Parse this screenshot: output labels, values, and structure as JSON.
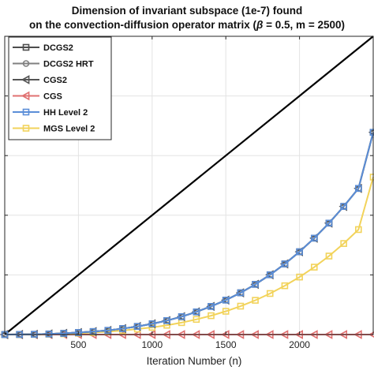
{
  "chart_data": {
    "type": "line",
    "title_line1": "Dimension of invariant subspace (1e-7) found",
    "title_line2_prefix": "on the convection-diffusion operator matrix (",
    "title_line2_beta": "β",
    "title_line2_suffix": " = 0.5, m = 2500)",
    "xlabel": "Iteration Number (n)",
    "ylabel": "",
    "xlim": [
      0,
      2500
    ],
    "ylim": [
      0,
      2500
    ],
    "x_ticks": [
      500,
      1000,
      1500,
      2000
    ],
    "y_ticks": [
      500,
      1000,
      1500,
      2000,
      2500
    ],
    "grid": true,
    "legend_position": "top-left",
    "reference_line": {
      "x": [
        0,
        2500
      ],
      "y": [
        0,
        2500
      ],
      "color": "#000000"
    },
    "series": [
      {
        "name": "DCGS2",
        "marker": "square",
        "color": "#4d4d4d",
        "x": [
          0,
          100,
          200,
          300,
          400,
          500,
          600,
          700,
          800,
          900,
          1000,
          1100,
          1200,
          1300,
          1400,
          1500,
          1600,
          1700,
          1800,
          1900,
          2000,
          2100,
          2200,
          2300,
          2400,
          2500
        ],
        "y": [
          0,
          1,
          2,
          5,
          10,
          17,
          25,
          35,
          50,
          68,
          90,
          117,
          150,
          190,
          236,
          289,
          350,
          421,
          501,
          592,
          694,
          808,
          934,
          1074,
          1225,
          1695
        ]
      },
      {
        "name": "DCGS2 HRT",
        "marker": "circle",
        "color": "#808080",
        "x": [
          0,
          100,
          200,
          300,
          400,
          500,
          600,
          700,
          800,
          900,
          1000,
          1100,
          1200,
          1300,
          1400,
          1500,
          1600,
          1700,
          1800,
          1900,
          2000,
          2100,
          2200,
          2300,
          2400,
          2500
        ],
        "y": [
          0,
          1,
          2,
          5,
          10,
          17,
          25,
          35,
          50,
          68,
          90,
          117,
          150,
          190,
          236,
          289,
          350,
          421,
          501,
          592,
          694,
          808,
          934,
          1074,
          1225,
          1695
        ]
      },
      {
        "name": "CGS2",
        "marker": "triangle-left",
        "color": "#555555",
        "x": [
          0,
          100,
          200,
          300,
          400,
          500,
          600,
          700,
          800,
          900,
          1000,
          1100,
          1200,
          1300,
          1400,
          1500,
          1600,
          1700,
          1800,
          1900,
          2000,
          2100,
          2200,
          2300,
          2400,
          2500
        ],
        "y": [
          0,
          1,
          2,
          5,
          10,
          17,
          25,
          35,
          50,
          68,
          90,
          117,
          150,
          190,
          236,
          289,
          350,
          421,
          501,
          592,
          694,
          808,
          934,
          1074,
          1225,
          1695
        ]
      },
      {
        "name": "CGS",
        "marker": "triangle-left",
        "color": "#e07070",
        "x": [
          0,
          100,
          200,
          300,
          400,
          500,
          600,
          700,
          800,
          900,
          1000,
          1100,
          1200,
          1300,
          1400,
          1500,
          1600,
          1700,
          1800,
          1900,
          2000,
          2100,
          2200,
          2300,
          2400,
          2500
        ],
        "y": [
          0,
          0,
          0,
          0,
          0,
          0,
          0,
          0,
          0,
          0,
          0,
          0,
          0,
          0,
          0,
          0,
          0,
          0,
          0,
          0,
          0,
          0,
          0,
          0,
          0,
          0
        ]
      },
      {
        "name": "HH Level 2",
        "marker": "square",
        "color": "#5b8ed8",
        "x": [
          0,
          100,
          200,
          300,
          400,
          500,
          600,
          700,
          800,
          900,
          1000,
          1100,
          1200,
          1300,
          1400,
          1500,
          1600,
          1700,
          1800,
          1900,
          2000,
          2100,
          2200,
          2300,
          2400,
          2500
        ],
        "y": [
          0,
          1,
          2,
          5,
          10,
          17,
          25,
          35,
          50,
          68,
          90,
          117,
          150,
          190,
          236,
          289,
          350,
          421,
          501,
          592,
          694,
          808,
          934,
          1074,
          1225,
          1695
        ]
      },
      {
        "name": "MGS Level 2",
        "marker": "square",
        "color": "#f2d35b",
        "x": [
          0,
          100,
          200,
          300,
          400,
          500,
          600,
          700,
          800,
          900,
          1000,
          1100,
          1200,
          1300,
          1400,
          1500,
          1600,
          1700,
          1800,
          1900,
          2000,
          2100,
          2200,
          2300,
          2400,
          2500
        ],
        "y": [
          0,
          0,
          1,
          3,
          6,
          11,
          17,
          24,
          34,
          46,
          60,
          78,
          100,
          127,
          158,
          195,
          238,
          287,
          344,
          409,
          482,
          565,
          658,
          763,
          880,
          1320
        ]
      }
    ]
  }
}
